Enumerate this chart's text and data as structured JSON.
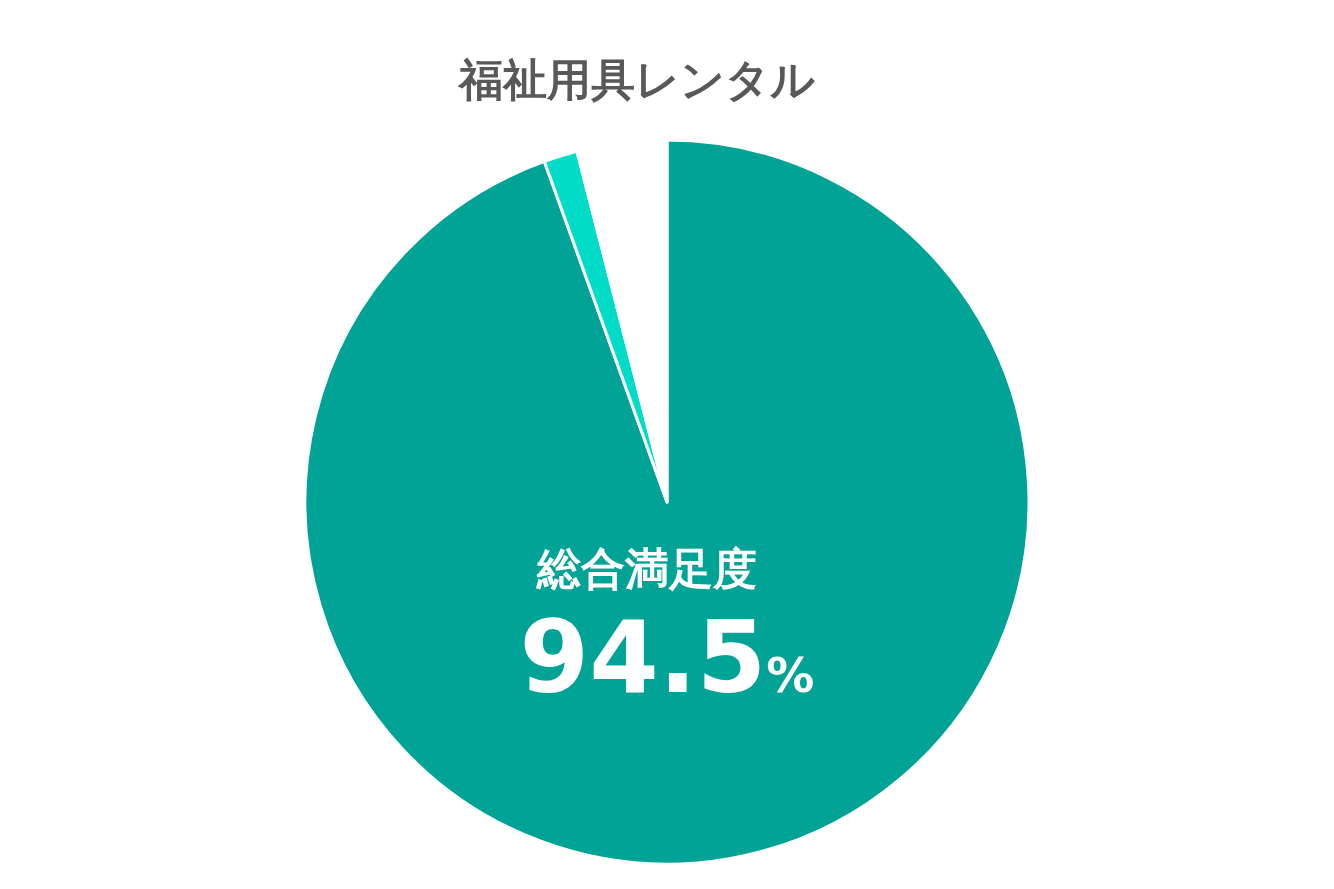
{
  "chart_data": {
    "type": "pie",
    "title": "福祉用具レンタル",
    "categories": [
      "総合満足度",
      null,
      null
    ],
    "values": [
      94.5,
      1.5,
      4.0
    ],
    "colors": [
      "#00a396",
      "#00dcc8",
      "#ffffff"
    ],
    "value_labels": [
      "94.5%",
      null,
      null
    ]
  }
}
